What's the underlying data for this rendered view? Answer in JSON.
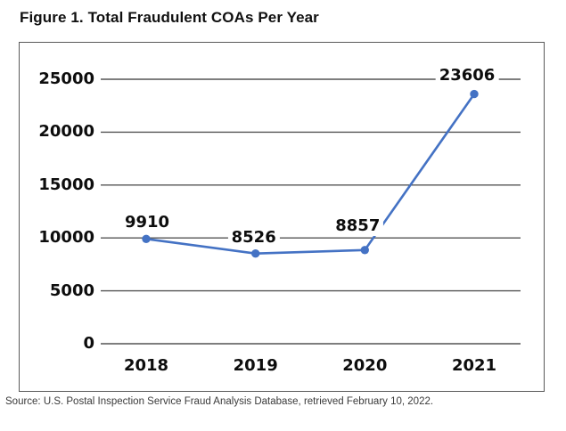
{
  "title": "Figure 1. Total Fraudulent COAs Per Year",
  "source": "Source: U.S. Postal Inspection Service Fraud Analysis Database, retrieved February 10, 2022.",
  "chart_data": {
    "type": "line",
    "title": "Figure 1. Total Fraudulent COAs Per Year",
    "categories": [
      "2018",
      "2019",
      "2020",
      "2021"
    ],
    "series": [
      {
        "name": "Total Fraudulent COAs",
        "values": [
          9910,
          8526,
          8857,
          23606
        ]
      }
    ],
    "data_labels": [
      "9910",
      "8526",
      "8857",
      "23606"
    ],
    "xlabel": "",
    "ylabel": "",
    "ylim": [
      0,
      25000
    ],
    "y_ticks": [
      0,
      5000,
      10000,
      15000,
      20000,
      25000
    ],
    "grid": true,
    "legend": "none",
    "line_color": "#4472C4",
    "marker_color": "#4472C4",
    "grid_color": "#545454",
    "frame_color": "#595959",
    "label_color": "#0d0d0d"
  }
}
